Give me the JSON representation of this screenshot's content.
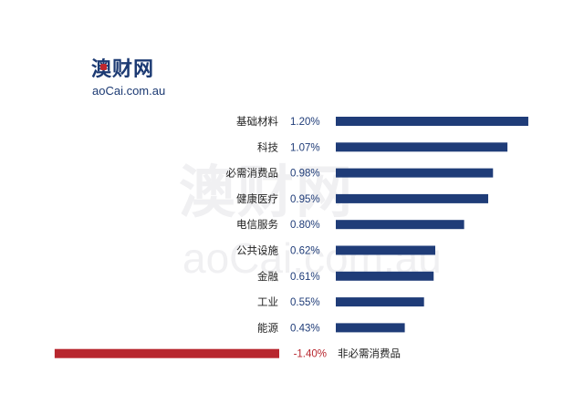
{
  "logo": {
    "name_cn": "澳财网",
    "domain": "aoCai.com.au"
  },
  "colors": {
    "positive_bar": "#1f3c78",
    "negative_bar": "#b8262e",
    "label_text": "#222222",
    "value_text_positive": "#1f3c78",
    "value_text_negative": "#b8262e"
  },
  "chart_data": {
    "type": "bar",
    "orientation": "horizontal",
    "title": "",
    "xlabel": "",
    "ylabel": "",
    "grid": false,
    "legend": false,
    "categories": [
      "基础材料",
      "科技",
      "必需消费品",
      "健康医疗",
      "电信服务",
      "公共设施",
      "金融",
      "工业",
      "能源",
      "非必需消费品"
    ],
    "values": [
      1.2,
      1.07,
      0.98,
      0.95,
      0.8,
      0.62,
      0.61,
      0.55,
      0.43,
      -1.4
    ],
    "value_labels": [
      "1.20%",
      "1.07%",
      "0.98%",
      "0.95%",
      "0.80%",
      "0.62%",
      "0.61%",
      "0.55%",
      "0.43%",
      "-1.40%"
    ],
    "unit": "%"
  }
}
